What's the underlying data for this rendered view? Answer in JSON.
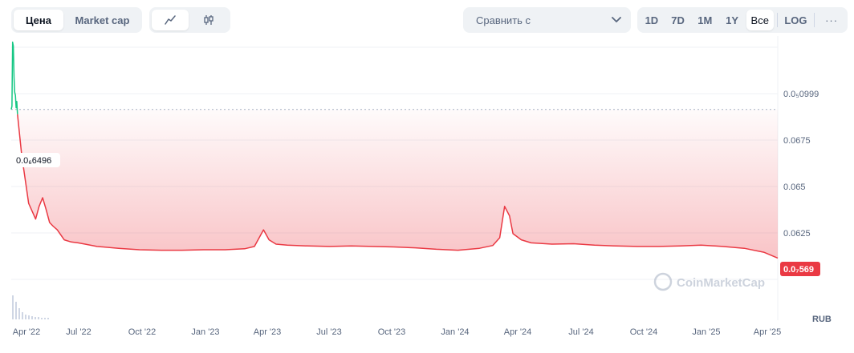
{
  "toolbar": {
    "price_tab": "Цена",
    "market_cap_tab": "Market cap",
    "line_icon": "line-chart-icon",
    "candle_icon": "candlestick-icon",
    "compare_placeholder": "Сравнить с",
    "ranges": [
      "1D",
      "7D",
      "1M",
      "1Y",
      "Все"
    ],
    "active_range": "Все",
    "log_label": "LOG",
    "more_label": "···"
  },
  "colors": {
    "up": "#16c784",
    "down": "#ea3943",
    "grid": "#eff2f5",
    "text": "#58667e"
  },
  "watermark": "CoinMarketCap",
  "chart_data": {
    "type": "line",
    "x_tick_labels": [
      "Apr '22",
      "Jul '22",
      "Oct '22",
      "Jan '23",
      "Apr '23",
      "Jul '23",
      "Oct '23",
      "Jan '24",
      "Apr '24",
      "Jul '24",
      "Oct '24",
      "Jan '25",
      "Apr '25"
    ],
    "y_tick_labels": [
      "0.0₅0999",
      "0.0675",
      "0.065",
      "0.0625"
    ],
    "currency_label": "RUB",
    "start_price_label": "0.0₆6496",
    "current_price_label": "0.0₇569",
    "series": [
      {
        "x": [
          "2022-03-31",
          "2022-04-01",
          "2022-04-02",
          "2022-04-03",
          "2022-04-04",
          "2022-04-05",
          "2022-04-06",
          "2022-04-07",
          "2022-04-08",
          "2022-04-09"
        ],
        "y": [
          6.496e-07,
          6.7e-07,
          1.13e-06,
          1.1e-06,
          8.6e-07,
          7.6e-07,
          7.4e-07,
          6.6e-07,
          7e-07,
          6.2e-07
        ]
      },
      {
        "x": [
          "2022-04-09",
          "2022-04-15",
          "2022-04-25",
          "2022-05-05",
          "2022-05-10",
          "2022-05-15",
          "2022-05-20",
          "2022-05-25",
          "2022-05-30",
          "2022-06-05",
          "2022-06-15",
          "2022-06-25",
          "2022-07-05",
          "2022-07-15",
          "2022-08-01",
          "2022-09-01",
          "2022-10-01",
          "2022-11-01",
          "2022-12-01",
          "2023-01-01",
          "2023-02-01",
          "2023-03-01",
          "2023-03-15",
          "2023-03-28",
          "2023-04-05",
          "2023-04-15",
          "2023-05-01",
          "2023-06-01",
          "2023-07-01",
          "2023-08-01",
          "2023-09-01",
          "2023-10-01",
          "2023-11-01",
          "2023-12-01",
          "2024-01-01",
          "2024-02-01",
          "2024-02-20",
          "2024-03-01",
          "2024-03-08",
          "2024-03-15",
          "2024-03-20",
          "2024-04-01",
          "2024-04-15",
          "2024-05-15",
          "2024-06-15",
          "2024-07-15",
          "2024-08-15",
          "2024-09-15",
          "2024-10-15",
          "2024-11-15",
          "2024-12-15",
          "2025-01-15",
          "2025-02-15",
          "2025-03-15",
          "2025-04-04"
        ],
        "y": [
          6.2e-07,
          4e-07,
          2e-07,
          1.5e-07,
          1.9e-07,
          2.2e-07,
          1.8e-07,
          1.4e-07,
          1.3e-07,
          1.2e-07,
          9.5e-08,
          9e-08,
          8.8e-08,
          8.5e-08,
          8e-08,
          7.6e-08,
          7.3e-08,
          7.2e-08,
          7.2e-08,
          7.3e-08,
          7.3e-08,
          7.5e-08,
          8e-08,
          1.2e-07,
          9.5e-08,
          8.5e-08,
          8.3e-08,
          8.1e-08,
          8e-08,
          8.1e-08,
          8e-08,
          7.9e-08,
          7.7e-08,
          7.4e-08,
          7.2e-08,
          7.6e-08,
          8.2e-08,
          1e-07,
          1.9e-07,
          1.6e-07,
          1.1e-07,
          9.5e-08,
          8.8e-08,
          8.5e-08,
          8.6e-08,
          8.3e-08,
          8.1e-08,
          8e-08,
          8e-08,
          8.1e-08,
          8.3e-08,
          8e-08,
          7.6e-08,
          6.8e-08,
          5.69e-08
        ]
      }
    ]
  }
}
